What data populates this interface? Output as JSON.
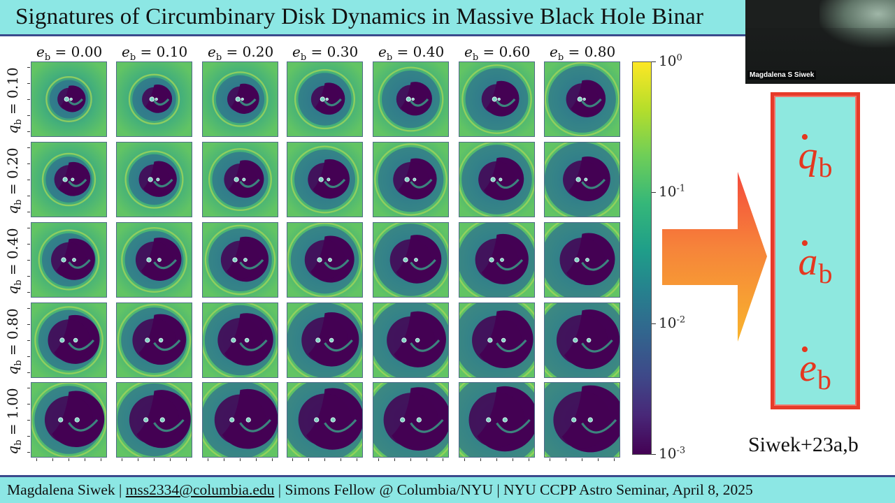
{
  "slide": {
    "title": "Signatures of Circumbinary Disk Dynamics in Massive Black Hole Binar",
    "column_labels": [
      "e_b = 0.00",
      "e_b = 0.10",
      "e_b = 0.20",
      "e_b = 0.30",
      "e_b = 0.40",
      "e_b = 0.60",
      "e_b = 0.80"
    ],
    "column_values": [
      "0.00",
      "0.10",
      "0.20",
      "0.30",
      "0.40",
      "0.60",
      "0.80"
    ],
    "row_values": [
      "0.10",
      "0.20",
      "0.40",
      "0.80",
      "1.00"
    ],
    "colorbar": {
      "colormap": "viridis",
      "ticks": [
        {
          "base": "10",
          "exp": "0"
        },
        {
          "base": "10",
          "exp": "-1"
        },
        {
          "base": "10",
          "exp": "-2"
        },
        {
          "base": "10",
          "exp": "-3"
        }
      ]
    },
    "formulas": [
      {
        "symbol": "q",
        "sub": "b"
      },
      {
        "symbol": "a",
        "sub": "b"
      },
      {
        "symbol": "e",
        "sub": "b"
      }
    ],
    "citation": "Siwek+23a,b",
    "footer": {
      "author": "Magdalena Siwek",
      "email": "mss2334@columbia.edu",
      "affiliation": "Simons Fellow @ Columbia/NYU",
      "event": "NYU CCPP Astro Seminar, April 8, 2025",
      "separator": "|"
    },
    "colors": {
      "header_bg": "#8ce7e4",
      "accent_red": "#e5371f",
      "viridis_low": "#440154",
      "viridis_high": "#fde725"
    }
  },
  "video": {
    "participant_name": "Magdalena S Siwek"
  }
}
